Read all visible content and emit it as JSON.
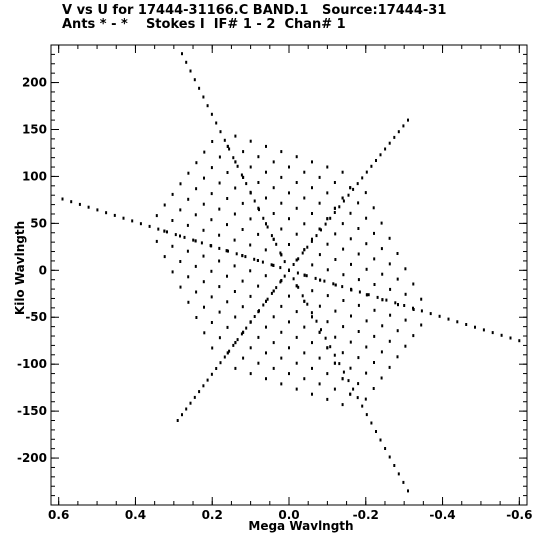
{
  "chart_data": {
    "type": "scatter",
    "title": "V vs U for 17444-31166.C BAND.1   Source:17444-31",
    "subtitle": "Ants * - *    Stokes I  IF# 1 - 2  Chan# 1",
    "xlabel": "Mega Wavlngth",
    "ylabel": "Kilo Wavlngth",
    "xlim": [
      0.62,
      -0.62
    ],
    "ylim": [
      -250,
      240
    ],
    "x_reversed": true,
    "x_ticks": [
      0.6,
      0.4,
      0.2,
      0.0,
      -0.2,
      -0.4,
      -0.6
    ],
    "x_tick_labels": [
      "0.6",
      "0.4",
      "0.2",
      "0.0",
      "-0.2",
      "-0.4",
      "-0.6"
    ],
    "y_ticks": [
      200,
      150,
      100,
      50,
      0,
      -50,
      -100,
      -150,
      -200
    ],
    "y_tick_labels": [
      "200",
      "150",
      "100",
      "50",
      "0",
      "-50",
      "-100",
      "-150",
      "-200"
    ],
    "grid": false,
    "legend": "none",
    "marker_color": "#000000",
    "uv_tracks": {
      "description_note": "six-fold symmetric uv coverage pattern (Hermitian pairs)",
      "arm_tips": [
        {
          "u": 0.29,
          "v": 240
        },
        {
          "u": -0.31,
          "v": -235
        },
        {
          "u": 0.59,
          "v": 76
        },
        {
          "u": -0.6,
          "v": -75
        },
        {
          "u": 0.29,
          "v": -160
        },
        {
          "u": -0.31,
          "v": 160
        }
      ]
    }
  }
}
